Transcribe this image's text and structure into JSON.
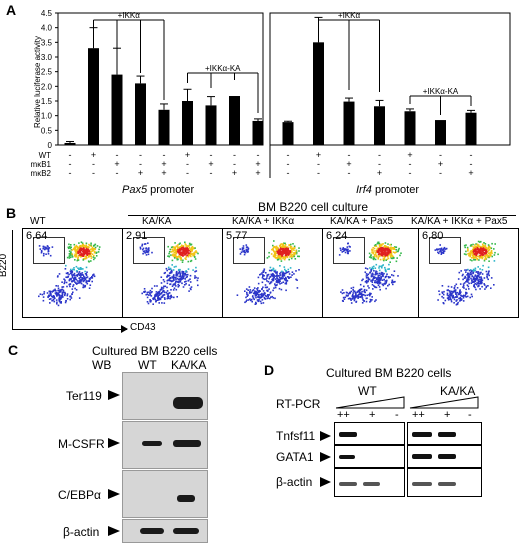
{
  "panel_a": {
    "label": "A",
    "chart_data": [
      {
        "type": "bar",
        "ylabel": "Relative luciferase activity",
        "ylim": [
          0,
          4.5
        ],
        "yticks": [
          "0",
          "0.5",
          "1.0",
          "1.5",
          "2.0",
          "2.5",
          "3.0",
          "3.5",
          "4.0",
          "4.5"
        ],
        "promoter_italic": "Pax5",
        "promoter_suffix": " promoter",
        "values": [
          0.07,
          3.3,
          2.4,
          2.1,
          1.2,
          1.5,
          1.35,
          1.67,
          0.82
        ],
        "errors": [
          0.05,
          0.7,
          0.9,
          0.25,
          0.2,
          0.4,
          0.3,
          0.0,
          0.07
        ],
        "bracket_left": "+IKKα",
        "bracket_right": "+IKKα-KA"
      },
      {
        "type": "bar",
        "ylim": [
          0,
          4.5
        ],
        "promoter_italic": "Irf4",
        "promoter_suffix": " promoter",
        "values": [
          0.78,
          3.5,
          1.48,
          1.32,
          1.15,
          0.85,
          1.1
        ],
        "errors": [
          0.03,
          0.85,
          0.12,
          0.2,
          0.08,
          0.0,
          0.08
        ],
        "bracket_left": "+IKKα",
        "bracket_right": "+IKKα-KA"
      }
    ],
    "row_labels": [
      "WT",
      "mκB1",
      "mκB2"
    ],
    "signs_left": [
      [
        "-",
        "+",
        "-",
        "-",
        "-",
        "+",
        "-",
        "-",
        "-"
      ],
      [
        "-",
        "-",
        "+",
        "-",
        "+",
        "-",
        "+",
        "-",
        "+"
      ],
      [
        "-",
        "-",
        "-",
        "+",
        "+",
        "-",
        "-",
        "+",
        "+"
      ]
    ],
    "signs_right": [
      [
        "-",
        "+",
        "-",
        "-",
        "+",
        "-",
        "-"
      ],
      [
        "-",
        "-",
        "+",
        "-",
        "-",
        "+",
        "-"
      ],
      [
        "-",
        "-",
        "-",
        "+",
        "-",
        "-",
        "+"
      ]
    ]
  },
  "panel_b": {
    "label": "B",
    "title": "BM B220 cell culture",
    "yaxis": "B220",
    "xaxis": "CD43",
    "plots": [
      {
        "label": "WT",
        "value": "6.64"
      },
      {
        "label": "KA/KA",
        "value": "2.91"
      },
      {
        "label": "KA/KA + IKKα",
        "value": "5.77"
      },
      {
        "label": "KA/KA + Pax5",
        "value": "6.24"
      },
      {
        "label": "KA/KA + IKKα + Pax5",
        "value": "6.80"
      }
    ]
  },
  "panel_c": {
    "label": "C",
    "title": "Cultured BM B220 cells",
    "wb": "WB",
    "lanes": [
      "WT",
      "KA/KA"
    ],
    "blots": [
      "Ter119",
      "M-CSFR",
      "C/EBPα",
      "β-actin"
    ]
  },
  "panel_d": {
    "label": "D",
    "title": "Cultured BM B220 cells",
    "rtpcr": "RT-PCR",
    "groups": [
      "WT",
      "KA/KA"
    ],
    "lane_signs": [
      "++",
      "+",
      "-"
    ],
    "genes": [
      "Tnfsf11",
      "GATA1",
      "β-actin"
    ]
  }
}
